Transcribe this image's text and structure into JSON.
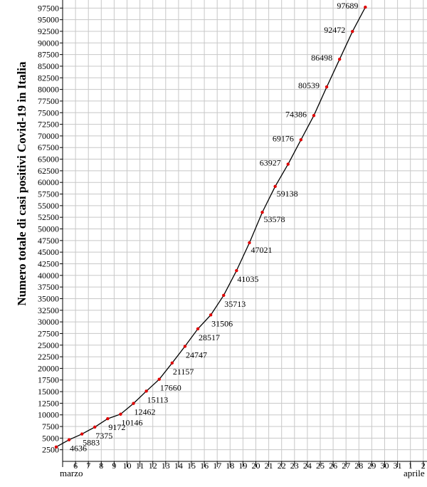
{
  "chart_data": {
    "type": "line",
    "title": "",
    "ylabel": "Numero totale di casi positivi Covid-19 in Italia",
    "xlabel": "",
    "month_labels": {
      "start": "marzo",
      "end": "aprile"
    },
    "x_tick_labels": [
      "6",
      "7",
      "8",
      "9",
      "10",
      "11",
      "12",
      "13",
      "14",
      "15",
      "16",
      "17",
      "18",
      "19",
      "20",
      "21",
      "22",
      "23",
      "24",
      "25",
      "26",
      "27",
      "28",
      "29",
      "30",
      "31",
      "1",
      "2"
    ],
    "ylim": [
      0,
      100000
    ],
    "ytick_step": 2500,
    "grid": true,
    "line_color": "#000000",
    "point_color": "#e00000",
    "series": [
      {
        "dates": [
          "2020-03-05",
          "2020-03-06",
          "2020-03-07",
          "2020-03-08",
          "2020-03-09",
          "2020-03-10",
          "2020-03-11",
          "2020-03-12",
          "2020-03-13",
          "2020-03-14",
          "2020-03-15",
          "2020-03-16",
          "2020-03-17",
          "2020-03-18",
          "2020-03-19",
          "2020-03-20",
          "2020-03-21",
          "2020-03-22",
          "2020-03-23",
          "2020-03-24",
          "2020-03-25",
          "2020-03-26",
          "2020-03-27",
          "2020-03-28",
          "2020-03-29"
        ],
        "values": [
          3089,
          4636,
          5883,
          7375,
          9172,
          10146,
          12462,
          15113,
          17660,
          21157,
          24747,
          28517,
          31506,
          35713,
          41035,
          47021,
          53578,
          59138,
          63927,
          69176,
          74386,
          80539,
          86498,
          92472,
          97689
        ],
        "labels": [
          "",
          "4636",
          "5883",
          "7375",
          "9172",
          "10146",
          "12462",
          "15113",
          "17660",
          "21157",
          "24747",
          "28517",
          "31506",
          "35713",
          "41035",
          "47021",
          "53578",
          "59138",
          "63927",
          "69176",
          "74386",
          "80539",
          "86498",
          "92472",
          "97689"
        ]
      }
    ]
  }
}
